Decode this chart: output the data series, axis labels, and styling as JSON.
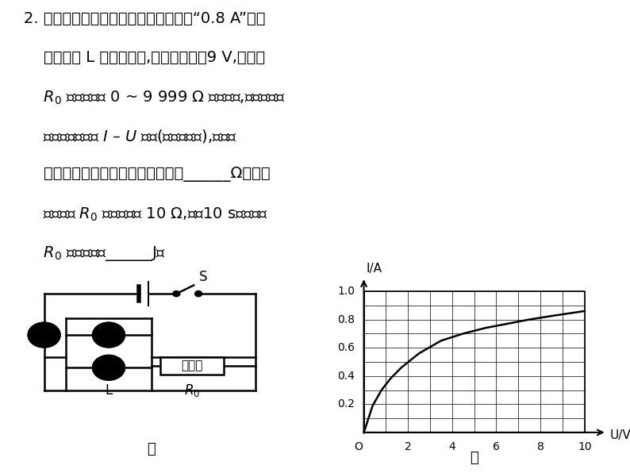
{
  "bg_color": "#ffffff",
  "text_color": "#000000",
  "graph": {
    "xlim": [
      0,
      10
    ],
    "ylim": [
      0,
      1.0
    ],
    "xticks_labels": [
      "2",
      "4",
      "6",
      "8",
      "10"
    ],
    "xticks_vals": [
      2,
      4,
      6,
      8,
      10
    ],
    "yticks_labels": [
      "0.2",
      "0.4",
      "0.6",
      "0.8",
      "1.0"
    ],
    "yticks_vals": [
      0.2,
      0.4,
      0.6,
      0.8,
      1.0
    ],
    "xlabel": "U/V",
    "ylabel": "I/A",
    "curve_x": [
      0,
      0.4,
      0.8,
      1.2,
      1.7,
      2.5,
      3.5,
      4.5,
      5.5,
      6.5,
      7.5,
      8.5,
      10.0
    ],
    "curve_y": [
      0,
      0.19,
      0.3,
      0.38,
      0.46,
      0.56,
      0.65,
      0.7,
      0.74,
      0.77,
      0.8,
      0.825,
      0.86
    ]
  }
}
